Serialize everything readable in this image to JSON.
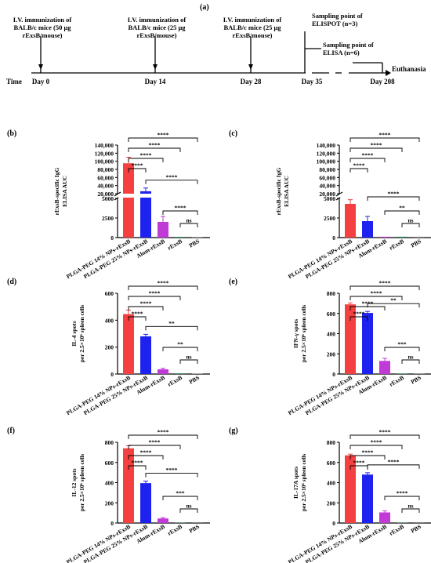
{
  "timeline": {
    "panel_label": "(a)",
    "time_label": "Time",
    "events": [
      {
        "day": "Day 0",
        "lines": [
          "I.V. immunization of",
          "BALB/c mice (50 μg",
          "rExsB/mouse)"
        ]
      },
      {
        "day": "Day 14",
        "lines": [
          "I.V. immunization of",
          "BALB/c mice (25 μg",
          "rExsB/mouse)"
        ]
      },
      {
        "day": "Day 28",
        "lines": [
          "I.V. immunization of",
          "BALB/c mice (25 μg",
          "rExsB/mouse)"
        ]
      },
      {
        "day": "Day 35",
        "lines": [
          "Sampling point of",
          "ELISPOT (n=3)"
        ]
      },
      {
        "day": "Day 208",
        "lines": [
          "Sampling point of",
          "ELISA (n=6)"
        ]
      }
    ],
    "end_label": "Euthanasia"
  },
  "colors": [
    "#f44040",
    "#1e22ee",
    "#c03ad6",
    "#2e8b57",
    "#8f8f8f"
  ],
  "chart_data": [
    {
      "panel": "(b)",
      "type": "bar",
      "ylabel": [
        "rExsB-specific IgG",
        "ELISA AUC"
      ],
      "categories": [
        "PLGA-PEG 14% NPs-rExsB",
        "PLGA-PEG 25% NPs-rExsB",
        "Alum-rExsB",
        "rExsB",
        "PBS"
      ],
      "values": [
        95000,
        26000,
        2000,
        100,
        80
      ],
      "errors": [
        15000,
        8000,
        700,
        0,
        0
      ],
      "broken_axis": true,
      "yticks_lower": [
        "0",
        "2500",
        "5000"
      ],
      "yticks_upper": [
        "20,000",
        "40,000",
        "60,000",
        "80,000",
        "100,000",
        "120,000",
        "140,000"
      ],
      "significance": [
        "****",
        "****",
        "****",
        "****",
        "****",
        "****",
        "ns"
      ]
    },
    {
      "panel": "(c)",
      "type": "bar",
      "ylabel": [
        "rExsB-specific IgG",
        "ELISA AUC"
      ],
      "categories": [
        "PLGA-PEG 14% NPs-rExsB",
        "PLGA-PEG 25% NPs-rExsB",
        "Alum-rExsB",
        "rExsB",
        "PBS"
      ],
      "values": [
        4300,
        2100,
        0,
        0,
        0
      ],
      "errors": [
        900,
        600,
        0,
        0,
        0
      ],
      "broken_axis": true,
      "yticks_lower": [
        "0",
        "2500",
        "5000"
      ],
      "yticks_upper": [
        "20,000",
        "40,000",
        "60,000",
        "80,000",
        "100,000",
        "120,000",
        "140,000"
      ],
      "significance": [
        "****",
        "****",
        "****",
        "****",
        "****",
        "**",
        "ns"
      ]
    },
    {
      "panel": "(d)",
      "type": "bar",
      "ylabel": [
        "IL-4 spots",
        "per 2.5×10⁶ spleen cells"
      ],
      "categories": [
        "PLGA-PEG 14% NPs-rExsB",
        "PLGA-PEG 25% NPs-rExsB",
        "Alum-rExsB",
        "rExsB",
        "PBS"
      ],
      "values": [
        445,
        280,
        35,
        5,
        3
      ],
      "errors": [
        30,
        15,
        8,
        0,
        0
      ],
      "ylim": [
        0,
        600
      ],
      "yticks": [
        "0",
        "200",
        "400",
        "600"
      ],
      "significance": [
        "****",
        "****",
        "****",
        "****",
        "**",
        "**",
        "ns"
      ]
    },
    {
      "panel": "(e)",
      "type": "bar",
      "ylabel": [
        "IFN-γ spots",
        "per 2.5×10⁶ spleen cells"
      ],
      "categories": [
        "PLGA-PEG 14% NPs-rExsB",
        "PLGA-PEG 25% NPs-rExsB",
        "Alum-rExsB",
        "rExsB",
        "PBS"
      ],
      "values": [
        690,
        605,
        130,
        5,
        3
      ],
      "errors": [
        15,
        15,
        25,
        0,
        0
      ],
      "ylim": [
        0,
        800
      ],
      "yticks": [
        "0",
        "200",
        "400",
        "600",
        "800"
      ],
      "significance": [
        "****",
        "****",
        "****",
        "****",
        "**",
        "***",
        "ns"
      ]
    },
    {
      "panel": "(f)",
      "type": "bar",
      "ylabel": [
        "IL-12 spots",
        "per 2.5×10⁶ spleen cells"
      ],
      "categories": [
        "PLGA-PEG 14% NPs-rExsB",
        "PLGA-PEG 25% NPs-rExsB",
        "Alum-rExsB",
        "rExsB",
        "PBS"
      ],
      "values": [
        740,
        395,
        45,
        3,
        2
      ],
      "errors": [
        25,
        20,
        8,
        0,
        0
      ],
      "ylim": [
        0,
        800
      ],
      "yticks": [
        "0",
        "200",
        "400",
        "600",
        "800"
      ],
      "significance": [
        "****",
        "****",
        "****",
        "****",
        "****",
        "***",
        "ns"
      ]
    },
    {
      "panel": "(g)",
      "type": "bar",
      "ylabel": [
        "IL-17A spots",
        "per 2.5×10⁶ spleen cells"
      ],
      "categories": [
        "PLGA-PEG 14% NPs-rExsB",
        "PLGA-PEG 25% NPs-rExsB",
        "Alum-rExsB",
        "rExsB",
        "PBS"
      ],
      "values": [
        670,
        480,
        105,
        3,
        2
      ],
      "errors": [
        12,
        18,
        15,
        0,
        0
      ],
      "ylim": [
        0,
        800
      ],
      "yticks": [
        "0",
        "200",
        "400",
        "600",
        "800"
      ],
      "significance": [
        "****",
        "****",
        "****",
        "****",
        "****",
        "****",
        "ns"
      ]
    }
  ]
}
